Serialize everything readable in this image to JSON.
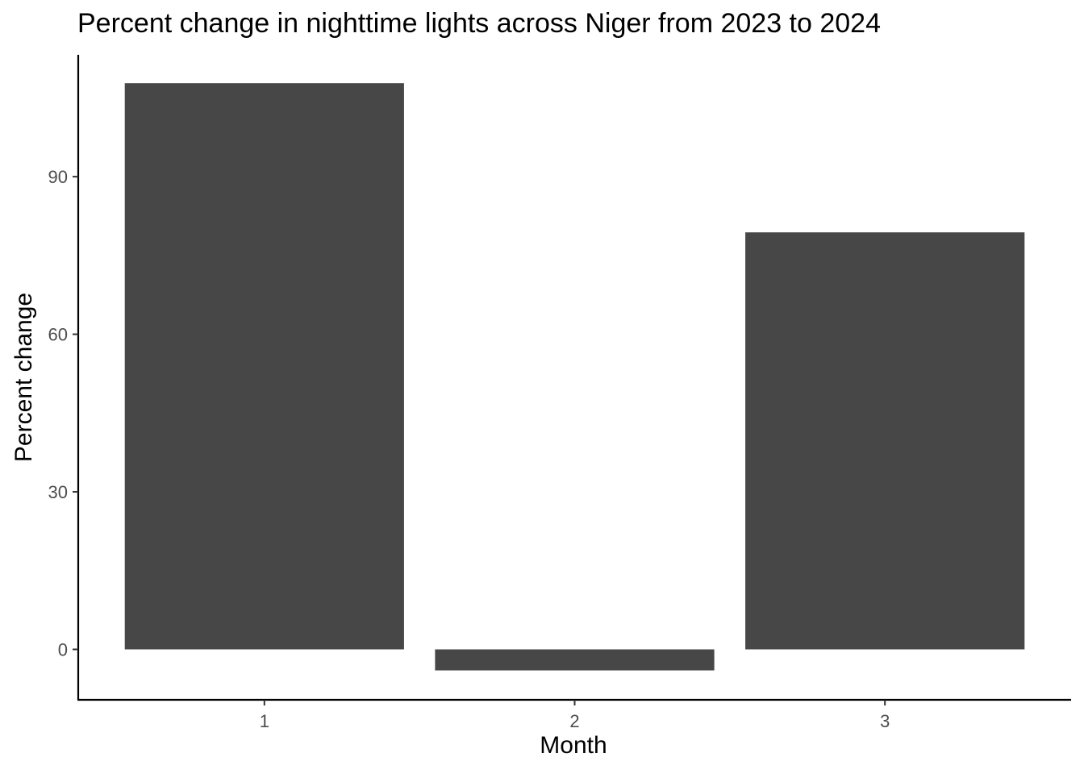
{
  "chart_data": {
    "type": "bar",
    "title": "Percent change in nighttime lights across Niger from 2023 to 2024",
    "xlabel": "Month",
    "ylabel": "Percent change",
    "categories": [
      "1",
      "2",
      "3"
    ],
    "values": [
      107.8,
      -4.0,
      79.4
    ],
    "yticks": [
      0,
      30,
      60,
      90
    ],
    "ylim": [
      -9.6,
      113.2
    ],
    "grid": false,
    "bar_color": "#474747",
    "axis_color": "#000000",
    "tick_label_color": "#4d4d4d"
  }
}
